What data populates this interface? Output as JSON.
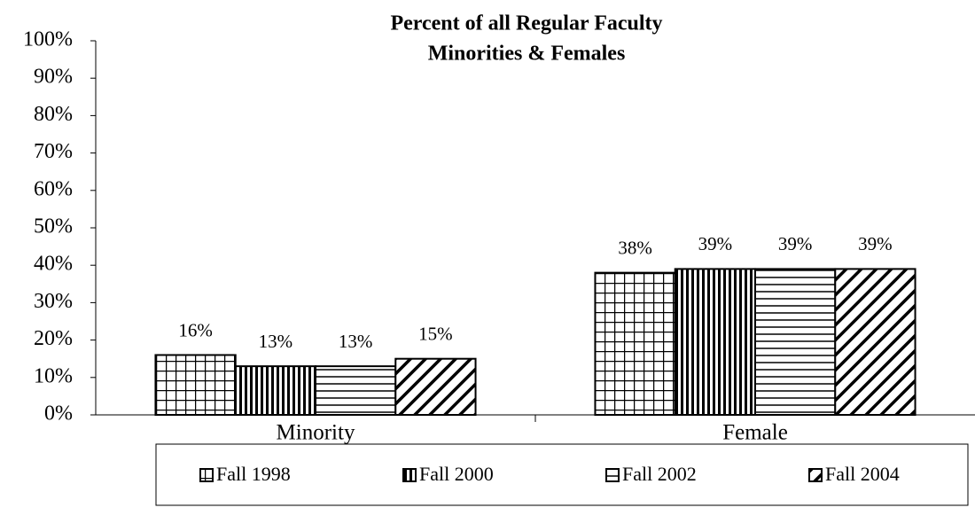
{
  "chart_data": {
    "type": "bar",
    "title": "Percent of all Regular Faculty",
    "subtitle": "Minorities & Females",
    "categories": [
      "Minority",
      "Female"
    ],
    "series": [
      {
        "name": "Fall 1998",
        "color": "#000000",
        "pattern": "grid",
        "values": [
          16,
          38
        ],
        "value_labels": [
          "16%",
          "38%"
        ]
      },
      {
        "name": "Fall 2000",
        "color": "#000000",
        "pattern": "vertical",
        "values": [
          13,
          39
        ],
        "value_labels": [
          "13%",
          "39%"
        ]
      },
      {
        "name": "Fall 2002",
        "color": "#000000",
        "pattern": "horizontal",
        "values": [
          13,
          39
        ],
        "value_labels": [
          "13%",
          "39%"
        ]
      },
      {
        "name": "Fall 2004",
        "color": "#000000",
        "pattern": "diagonal",
        "values": [
          15,
          39
        ],
        "value_labels": [
          "15%",
          "39%"
        ]
      }
    ],
    "ylim": [
      0,
      100
    ],
    "yticks": [
      {
        "value": 0,
        "label": "0%"
      },
      {
        "value": 10,
        "label": "10%"
      },
      {
        "value": 20,
        "label": "20%"
      },
      {
        "value": 30,
        "label": "30%"
      },
      {
        "value": 40,
        "label": "40%"
      },
      {
        "value": 50,
        "label": "50%"
      },
      {
        "value": 60,
        "label": "60%"
      },
      {
        "value": 70,
        "label": "70%"
      },
      {
        "value": 80,
        "label": "80%"
      },
      {
        "value": 90,
        "label": "90%"
      },
      {
        "value": 100,
        "label": "100%"
      }
    ],
    "grid": false,
    "legend": "bottom"
  }
}
